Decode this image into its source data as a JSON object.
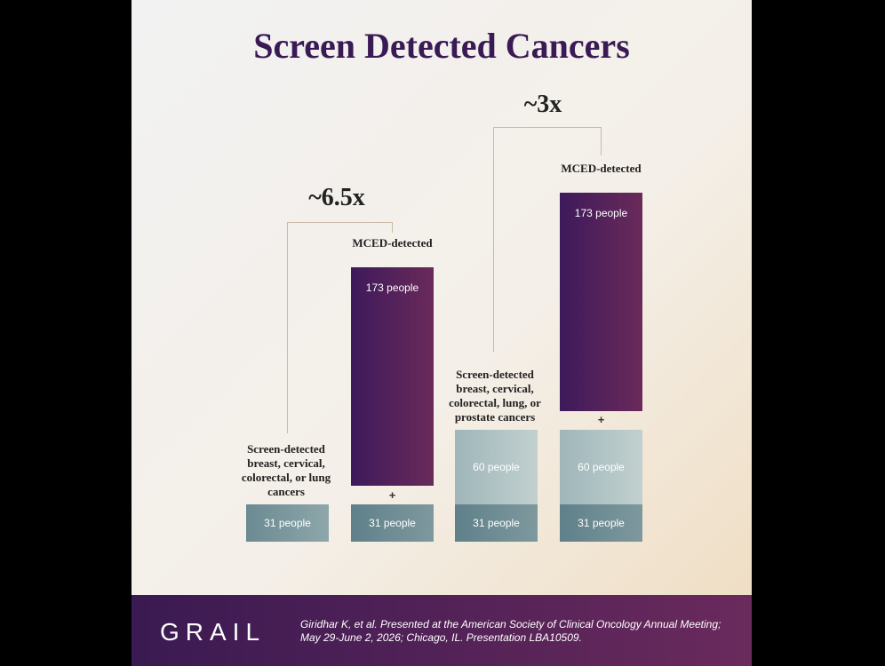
{
  "title": "Screen Detected Cancers",
  "comparisons": [
    {
      "multiplier": "~6.5x",
      "baseline": {
        "label": "Screen-detected breast, cervical, colorectal, or lung cancers",
        "segments": [
          "31 people"
        ]
      },
      "mced": {
        "label": "MCED-detected",
        "plus": "+",
        "segments": [
          "31 people",
          "173 people"
        ]
      }
    },
    {
      "multiplier": "~3x",
      "baseline": {
        "label": "Screen-detected breast, cervical, colorectal, lung, or prostate cancers",
        "segments": [
          "31 people",
          "60 people"
        ]
      },
      "mced": {
        "label": "MCED-detected",
        "plus": "+",
        "segments": [
          "31 people",
          "60 people",
          "173 people"
        ]
      }
    }
  ],
  "footer": {
    "logo": "GRAIL",
    "citation": "Giridhar K, et al. Presented at the American Society of Clinical Oncology Annual Meeting; May 29-June 2, 2026; Chicago, IL. Presentation LBA10509."
  }
}
